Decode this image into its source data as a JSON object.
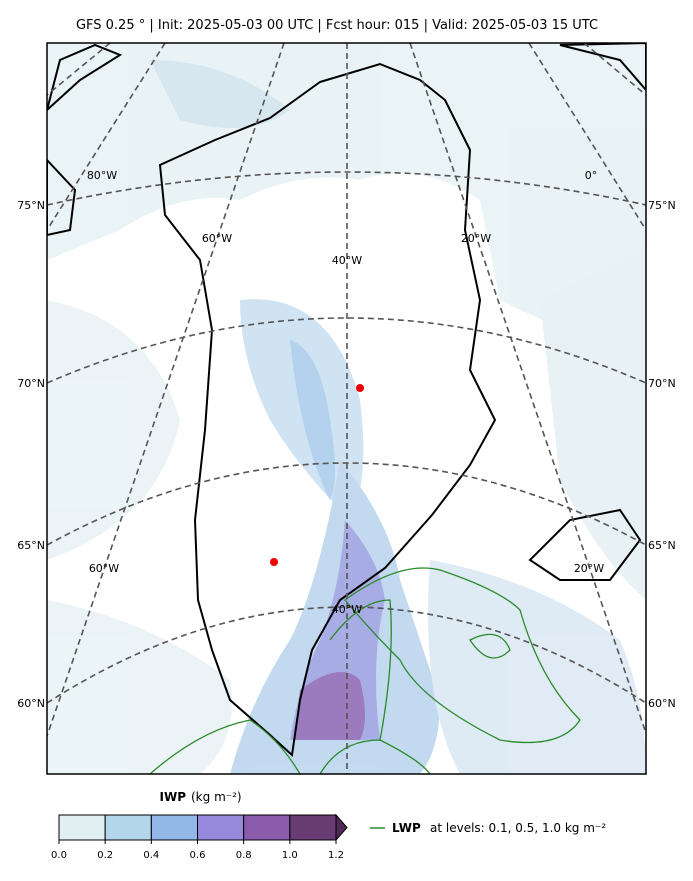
{
  "title": "GFS 0.25 ° | Init: 2025-05-03 00 UTC | Fcst hour: 015 | Valid: 2025-05-03 15 UTC",
  "map": {
    "lat_labels_left": [
      "75°N",
      "70°N",
      "65°N",
      "60°N"
    ],
    "lat_labels_right": [
      "75°N",
      "70°N",
      "65°N",
      "60°N"
    ],
    "lon_labels": [
      "80°W",
      "0°",
      "60°W",
      "40°W",
      "20°W",
      "60°W",
      "20°W",
      "40°W"
    ]
  },
  "colorbar": {
    "label_bold": "IWP",
    "label_unit": "(kg m⁻²)",
    "ticks": [
      {
        "value": 0,
        "label": "0.0"
      },
      {
        "value": 0.2,
        "label": "0.2"
      },
      {
        "value": 0.4,
        "label": "0.4"
      },
      {
        "value": 0.6,
        "label": "0.6"
      },
      {
        "value": 0.8,
        "label": "0.8"
      },
      {
        "value": 1.0,
        "label": "1.0"
      },
      {
        "value": 1.2,
        "label": "1.2"
      }
    ]
  },
  "legend": {
    "label_bold": "LWP",
    "label_rest": "at levels: 0.1, 0.5, 1.0  kg m⁻²"
  }
}
